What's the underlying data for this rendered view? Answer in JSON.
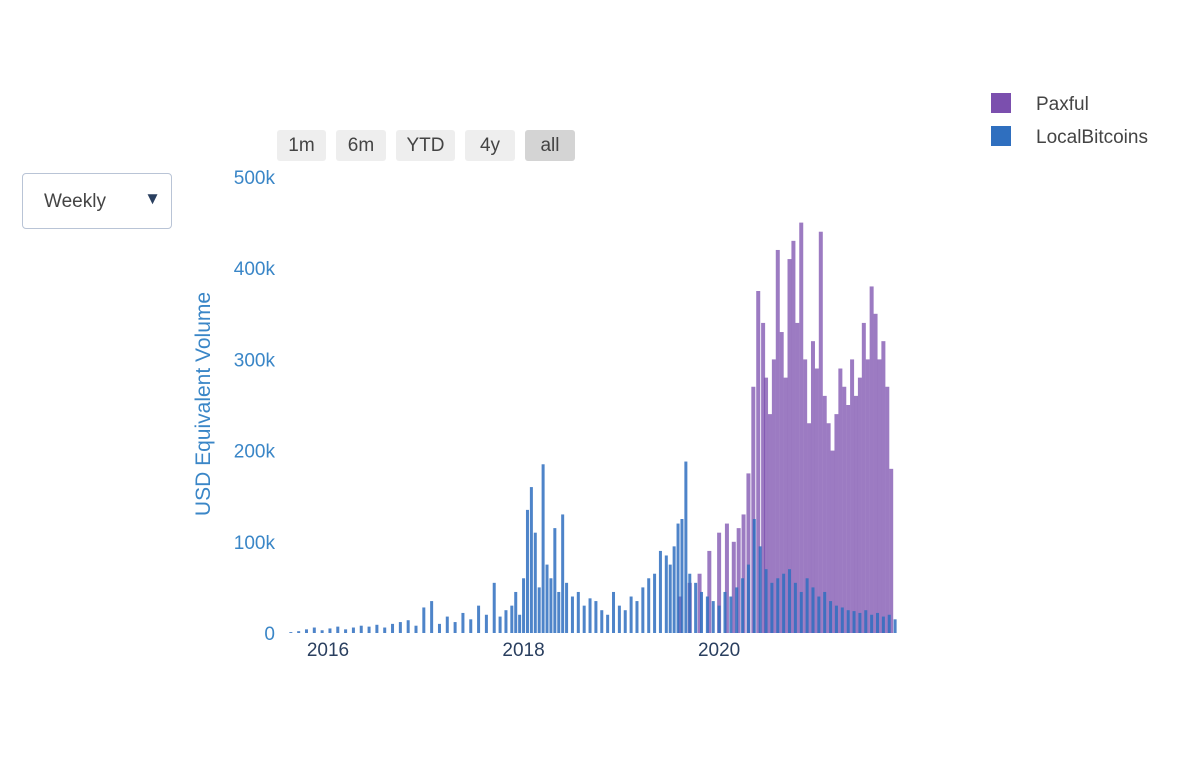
{
  "dropdown": {
    "value": "Weekly",
    "arrow_icon": "triangle-down-icon"
  },
  "range_buttons": [
    {
      "label": "1m",
      "active": false
    },
    {
      "label": "6m",
      "active": false
    },
    {
      "label": "YTD",
      "active": false
    },
    {
      "label": "4y",
      "active": false
    },
    {
      "label": "all",
      "active": true
    }
  ],
  "chart_data": {
    "type": "bar",
    "barmode": "overlay",
    "xlabel": "",
    "ylabel": "USD Equivalent Volume",
    "xlim": [
      2015.55,
      2021.85
    ],
    "ylim": [
      0,
      500000
    ],
    "x_ticks": [
      {
        "value": 2016,
        "label": "2016"
      },
      {
        "value": 2018,
        "label": "2018"
      },
      {
        "value": 2020,
        "label": "2020"
      }
    ],
    "y_ticks": [
      {
        "value": 0,
        "label": "0"
      },
      {
        "value": 100000,
        "label": "100k"
      },
      {
        "value": 200000,
        "label": "200k"
      },
      {
        "value": 300000,
        "label": "300k"
      },
      {
        "value": 400000,
        "label": "400k"
      },
      {
        "value": 500000,
        "label": "500k"
      }
    ],
    "legend_position": "top-right",
    "series": [
      {
        "name": "Paxful",
        "color": "#7b4fae",
        "x": [
          2019.6,
          2019.7,
          2019.8,
          2019.9,
          2020.0,
          2020.08,
          2020.15,
          2020.2,
          2020.25,
          2020.3,
          2020.35,
          2020.4,
          2020.45,
          2020.48,
          2020.52,
          2020.56,
          2020.6,
          2020.64,
          2020.68,
          2020.72,
          2020.76,
          2020.8,
          2020.84,
          2020.88,
          2020.92,
          2020.96,
          2021.0,
          2021.04,
          2021.08,
          2021.12,
          2021.16,
          2021.2,
          2021.24,
          2021.28,
          2021.32,
          2021.36,
          2021.4,
          2021.44,
          2021.48,
          2021.52,
          2021.56,
          2021.6,
          2021.64,
          2021.68,
          2021.72,
          2021.76
        ],
        "values": [
          40000,
          55000,
          65000,
          90000,
          110000,
          120000,
          100000,
          115000,
          130000,
          175000,
          270000,
          375000,
          340000,
          280000,
          240000,
          300000,
          420000,
          330000,
          280000,
          410000,
          430000,
          340000,
          450000,
          300000,
          230000,
          320000,
          290000,
          440000,
          260000,
          230000,
          200000,
          240000,
          290000,
          270000,
          250000,
          300000,
          260000,
          280000,
          340000,
          300000,
          380000,
          350000,
          300000,
          320000,
          270000,
          180000
        ]
      },
      {
        "name": "LocalBitcoins",
        "color": "#2f6fbf",
        "x": [
          2015.62,
          2015.7,
          2015.78,
          2015.86,
          2015.94,
          2016.02,
          2016.1,
          2016.18,
          2016.26,
          2016.34,
          2016.42,
          2016.5,
          2016.58,
          2016.66,
          2016.74,
          2016.82,
          2016.9,
          2016.98,
          2017.06,
          2017.14,
          2017.22,
          2017.3,
          2017.38,
          2017.46,
          2017.54,
          2017.62,
          2017.7,
          2017.76,
          2017.82,
          2017.88,
          2017.92,
          2017.96,
          2018.0,
          2018.04,
          2018.08,
          2018.12,
          2018.16,
          2018.2,
          2018.24,
          2018.28,
          2018.32,
          2018.36,
          2018.4,
          2018.44,
          2018.5,
          2018.56,
          2018.62,
          2018.68,
          2018.74,
          2018.8,
          2018.86,
          2018.92,
          2018.98,
          2019.04,
          2019.1,
          2019.16,
          2019.22,
          2019.28,
          2019.34,
          2019.4,
          2019.46,
          2019.5,
          2019.54,
          2019.58,
          2019.62,
          2019.66,
          2019.7,
          2019.76,
          2019.82,
          2019.88,
          2019.94,
          2020.0,
          2020.06,
          2020.12,
          2020.18,
          2020.24,
          2020.3,
          2020.36,
          2020.42,
          2020.48,
          2020.54,
          2020.6,
          2020.66,
          2020.72,
          2020.78,
          2020.84,
          2020.9,
          2020.96,
          2021.02,
          2021.08,
          2021.14,
          2021.2,
          2021.26,
          2021.32,
          2021.38,
          2021.44,
          2021.5,
          2021.56,
          2021.62,
          2021.68,
          2021.74,
          2021.8
        ],
        "values": [
          1000,
          2000,
          4000,
          6000,
          3000,
          5000,
          7000,
          4000,
          6000,
          8000,
          7000,
          9000,
          6000,
          10000,
          12000,
          14000,
          8000,
          28000,
          35000,
          10000,
          18000,
          12000,
          22000,
          15000,
          30000,
          20000,
          55000,
          18000,
          25000,
          30000,
          45000,
          20000,
          60000,
          135000,
          160000,
          110000,
          50000,
          185000,
          75000,
          60000,
          115000,
          45000,
          130000,
          55000,
          40000,
          45000,
          30000,
          38000,
          35000,
          25000,
          20000,
          45000,
          30000,
          25000,
          40000,
          35000,
          50000,
          60000,
          65000,
          90000,
          85000,
          75000,
          95000,
          120000,
          125000,
          188000,
          65000,
          55000,
          45000,
          40000,
          35000,
          30000,
          45000,
          40000,
          50000,
          60000,
          75000,
          125000,
          95000,
          70000,
          55000,
          60000,
          65000,
          70000,
          55000,
          45000,
          60000,
          50000,
          40000,
          45000,
          35000,
          30000,
          28000,
          25000,
          24000,
          22000,
          25000,
          20000,
          22000,
          18000,
          20000,
          15000
        ]
      }
    ]
  }
}
